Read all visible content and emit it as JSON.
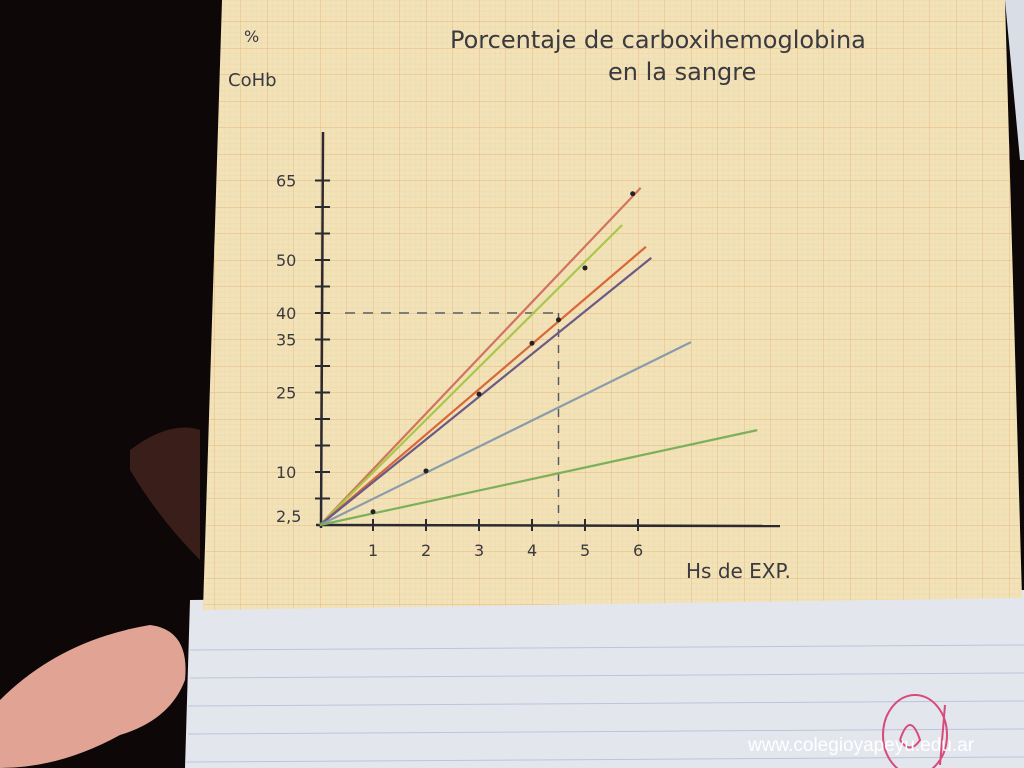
{
  "chart_data": {
    "type": "line",
    "title": "Porcentaje de carboxihemoglobina",
    "subtitle": "en la sangre",
    "ylabel_top": "%",
    "ylabel": "CoHb",
    "xlabel": "Hs de EXP.",
    "x_ticks": [
      "1",
      "2",
      "3",
      "4",
      "5",
      "6"
    ],
    "y_ticks": [
      {
        "value": 2.5,
        "label": "2,5"
      },
      {
        "value": 10,
        "label": "10"
      },
      {
        "value": 25,
        "label": "25"
      },
      {
        "value": 35,
        "label": "35"
      },
      {
        "value": 40,
        "label": "40"
      },
      {
        "value": 50,
        "label": "50"
      },
      {
        "value": 65,
        "label": "65"
      }
    ],
    "xlim": [
      0,
      8.5
    ],
    "ylim": [
      0,
      70
    ],
    "grid": true,
    "series": [
      {
        "color": "#d0745c",
        "x": [
          0,
          6.05
        ],
        "y": [
          0,
          63.6
        ],
        "points": [
          [
            5.9,
            62.5
          ]
        ]
      },
      {
        "color": "#a8c84a",
        "x": [
          0,
          5.7
        ],
        "y": [
          0,
          56.6
        ],
        "points": [
          [
            5,
            48.5
          ]
        ]
      },
      {
        "color": "#d8683a",
        "x": [
          0,
          6.15
        ],
        "y": [
          0,
          52.5
        ],
        "points": [
          [
            4.5,
            38.7
          ]
        ]
      },
      {
        "color": "#6a5a86",
        "x": [
          0,
          6.25
        ],
        "y": [
          0,
          50.4
        ],
        "points": [
          [
            3,
            24.7
          ],
          [
            4,
            34.3
          ]
        ]
      },
      {
        "color": "#8a9cab",
        "x": [
          0,
          7.0
        ],
        "y": [
          0,
          34.5
        ],
        "points": [
          [
            2,
            10.2
          ]
        ]
      },
      {
        "color": "#7cb05a",
        "x": [
          0,
          8.25
        ],
        "y": [
          0,
          17.9
        ],
        "points": [
          [
            1,
            2.5
          ]
        ]
      }
    ],
    "reference_lines": {
      "y": 40,
      "x": 4.5,
      "style": "dashed"
    }
  },
  "watermark": "www.colegioyapeyu.edu.ar"
}
